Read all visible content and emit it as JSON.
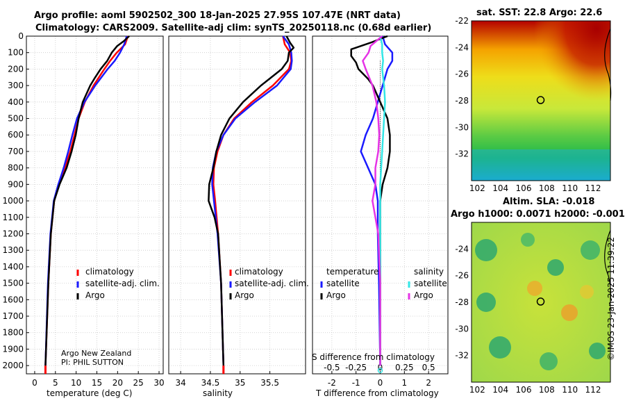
{
  "header": {
    "title_line1": "Argo profile: aoml 5902502_300 18-Jan-2025 27.95S 107.47E (NRT data)",
    "title_line2": "Climatology: CARS2009. Satellite-adj clim: synTS_20250118.nc (0.68d earlier)"
  },
  "watermark": "©IMOS 23-Jan-2025 11:39:22",
  "colors": {
    "climatology": "#ff0000",
    "satellite": "#1a1aff",
    "argo": "#000000",
    "sat_cyan": "#33e6e6",
    "argo_magenta": "#e633e6"
  },
  "chart_data": [
    {
      "id": "temperature",
      "type": "line",
      "xlabel": "temperature (deg C)",
      "ylabel": "",
      "xlim": [
        -2,
        31
      ],
      "ylim": [
        2050,
        0
      ],
      "xticks": [
        0,
        5,
        10,
        15,
        20,
        25,
        30
      ],
      "yticks": [
        0,
        100,
        200,
        300,
        400,
        500,
        600,
        700,
        800,
        900,
        1000,
        1100,
        1200,
        1300,
        1400,
        1500,
        1600,
        1700,
        1800,
        1900,
        2000
      ],
      "grid": true,
      "legend": {
        "position": "center-right",
        "entries": [
          "climatology",
          "satellite-adj. clim.",
          "Argo"
        ]
      },
      "annotation": [
        "Argo New Zealand",
        "PI: PHIL SUTTON"
      ],
      "series": [
        {
          "name": "climatology",
          "depth": [
            0,
            50,
            100,
            150,
            200,
            300,
            400,
            500,
            600,
            700,
            800,
            900,
            1000,
            1200,
            1500,
            2000,
            2050
          ],
          "values": [
            22.5,
            21.8,
            19.8,
            18.2,
            16.8,
            14.2,
            12.1,
            10.6,
            9.6,
            8.6,
            7.3,
            5.8,
            4.7,
            3.9,
            3.3,
            2.6,
            2.55
          ]
        },
        {
          "name": "satellite-adj. clim.",
          "depth": [
            0,
            50,
            100,
            150,
            200,
            300,
            400,
            500,
            600,
            700,
            800,
            900,
            1000,
            1200,
            1500,
            2000,
            2050
          ],
          "values": [
            22.2,
            21.6,
            20.6,
            19.3,
            17.6,
            14.6,
            12.0,
            10.2,
            9.1,
            8.1,
            7.0,
            5.7,
            4.6,
            3.8,
            3.2,
            2.6,
            2.55
          ]
        },
        {
          "name": "Argo",
          "depth": [
            0,
            30,
            60,
            100,
            150,
            200,
            250,
            300,
            400,
            500,
            600,
            700,
            800,
            900,
            1000,
            1200,
            1500,
            2000
          ],
          "values": [
            22.8,
            21.5,
            19.9,
            18.6,
            17.5,
            15.9,
            14.6,
            13.4,
            11.6,
            10.6,
            9.9,
            8.9,
            7.7,
            6.0,
            4.7,
            3.9,
            3.3,
            2.6
          ]
        }
      ]
    },
    {
      "id": "salinity",
      "type": "line",
      "xlabel": "salinity",
      "xlim": [
        33.8,
        36.1
      ],
      "ylim": [
        2050,
        0
      ],
      "xticks": [
        34,
        34.5,
        35,
        35.5
      ],
      "xtick_labels": [
        "34",
        "34.5",
        "35",
        "35.5"
      ],
      "grid": true,
      "legend": {
        "position": "center-right",
        "entries": [
          "climatology",
          "satellite-adj. clim.",
          "Argo"
        ]
      },
      "series": [
        {
          "name": "climatology",
          "depth": [
            0,
            50,
            100,
            150,
            200,
            300,
            400,
            500,
            600,
            700,
            800,
            900,
            1000,
            1200,
            1500,
            2000,
            2050
          ],
          "values": [
            35.72,
            35.75,
            35.84,
            35.86,
            35.82,
            35.55,
            35.2,
            34.9,
            34.72,
            34.62,
            34.56,
            34.55,
            34.58,
            34.63,
            34.68,
            34.72,
            34.72
          ]
        },
        {
          "name": "satellite-adj. clim.",
          "depth": [
            0,
            50,
            100,
            150,
            200,
            300,
            400,
            500,
            600,
            700,
            800,
            900,
            1000,
            1200,
            1500,
            2000,
            2050
          ],
          "values": [
            35.72,
            35.82,
            35.86,
            35.87,
            35.85,
            35.62,
            35.25,
            34.92,
            34.72,
            34.6,
            34.54,
            34.53,
            34.56,
            34.62,
            34.68,
            34.72,
            34.72
          ]
        },
        {
          "name": "Argo",
          "depth": [
            0,
            40,
            70,
            100,
            150,
            200,
            300,
            400,
            500,
            600,
            700,
            800,
            900,
            1000,
            1100,
            1200,
            1500,
            2000
          ],
          "values": [
            35.78,
            35.84,
            35.9,
            35.82,
            35.8,
            35.7,
            35.35,
            35.05,
            34.82,
            34.68,
            34.6,
            34.55,
            34.48,
            34.47,
            34.57,
            34.63,
            34.68,
            34.72
          ]
        }
      ]
    },
    {
      "id": "difference",
      "type": "line",
      "xlabel": "T difference from climatology",
      "xlabel_top": "S difference from climatology",
      "xlim": [
        -2.8,
        2.8
      ],
      "ylim": [
        2050,
        0
      ],
      "xticks": [
        -2,
        -1,
        0,
        1,
        2
      ],
      "xtick_labels": [
        "-2",
        "-1",
        "0",
        "1",
        "2"
      ],
      "xticks_s": [
        -0.5,
        -0.25,
        0,
        0.25,
        0.5
      ],
      "xtick_labels_s": [
        "-0.5",
        "-0.25",
        "0",
        "0.25",
        "0.5"
      ],
      "grid": true,
      "legend": {
        "position": "center",
        "temperature_header": "temperature",
        "salinity_header": "salinity",
        "entries_t": [
          "satellite",
          "Argo"
        ],
        "entries_s": [
          "satellite",
          "Argo"
        ]
      },
      "series": [
        {
          "name": "T satellite",
          "depth": [
            0,
            50,
            100,
            150,
            200,
            300,
            400,
            500,
            600,
            700,
            800,
            900,
            1000,
            1200,
            1500,
            2000
          ],
          "values": [
            0.1,
            0.2,
            0.5,
            0.5,
            0.3,
            0.1,
            -0.1,
            -0.3,
            -0.6,
            -0.8,
            -0.5,
            -0.2,
            -0.1,
            -0.1,
            -0.05,
            0
          ]
        },
        {
          "name": "T Argo",
          "depth": [
            0,
            40,
            80,
            120,
            160,
            200,
            260,
            300,
            400,
            500,
            600,
            700,
            800,
            900,
            1000,
            1100,
            1200,
            1500,
            2000
          ],
          "values": [
            0.3,
            -0.4,
            -1.2,
            -1.2,
            -1.0,
            -0.9,
            -0.5,
            -0.3,
            0,
            0.3,
            0.4,
            0.4,
            0.3,
            0.1,
            0.0,
            0.0,
            0.0,
            0.0,
            0.0
          ]
        },
        {
          "name": "S satellite",
          "depth": [
            0,
            50,
            100,
            150,
            200,
            300,
            400,
            500,
            600,
            700,
            800,
            900,
            1000,
            1200,
            1500,
            2000
          ],
          "values": [
            0.0,
            0.02,
            0.02,
            0.03,
            0.02,
            0.04,
            0.05,
            0.04,
            0.03,
            0.02,
            0.01,
            0.0,
            0.0,
            0.0,
            0.0,
            0.0
          ]
        },
        {
          "name": "S Argo",
          "depth": [
            0,
            60,
            100,
            150,
            200,
            300,
            400,
            500,
            600,
            700,
            800,
            900,
            1000,
            1100,
            1200,
            1500,
            2000
          ],
          "values": [
            0.02,
            -0.1,
            -0.12,
            -0.18,
            -0.15,
            -0.08,
            -0.04,
            -0.02,
            -0.01,
            -0.02,
            -0.05,
            -0.05,
            -0.08,
            -0.05,
            -0.02,
            0.0,
            0.0
          ]
        }
      ]
    },
    {
      "id": "sst_map",
      "type": "heatmap",
      "title": "sat. SST: 22.8 Argo: 22.6",
      "xlim": [
        101.5,
        113.5
      ],
      "ylim": [
        -34,
        -22
      ],
      "xticks": [
        102,
        104,
        106,
        108,
        110,
        112
      ],
      "yticks": [
        -22,
        -24,
        -26,
        -28,
        -30,
        -32
      ],
      "marker": {
        "lon": 107.47,
        "lat": -27.95
      }
    },
    {
      "id": "sla_map",
      "type": "heatmap",
      "title_line1": "Altim. SLA: -0.018",
      "title_line2": "Argo h1000: 0.0071 h2000: -0.001",
      "xlim": [
        101.5,
        113.5
      ],
      "ylim": [
        -34,
        -22
      ],
      "xticks": [
        102,
        104,
        106,
        108,
        110,
        112
      ],
      "yticks": [
        -24,
        -26,
        -28,
        -30,
        -32
      ],
      "marker": {
        "lon": 107.47,
        "lat": -27.95
      }
    }
  ]
}
